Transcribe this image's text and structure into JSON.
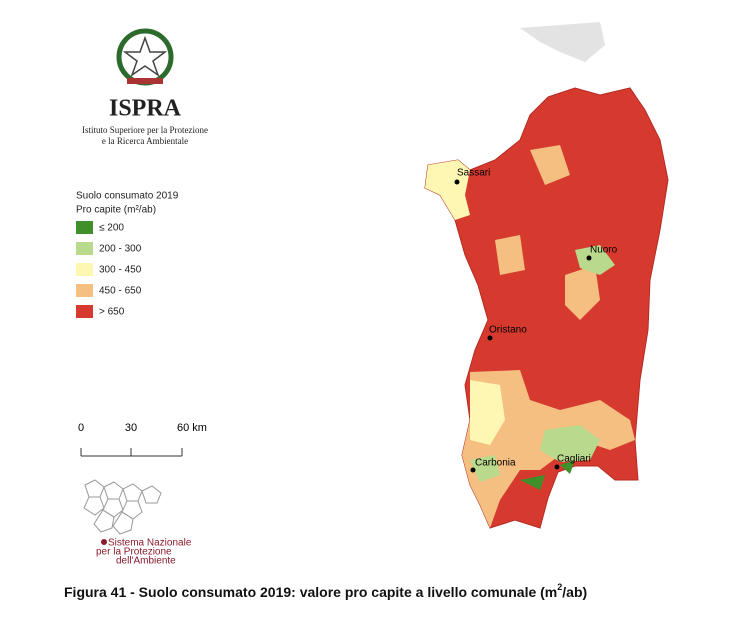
{
  "header": {
    "title": "ISPRA",
    "subtitle_line1": "Istituto Superiore per la Protezione",
    "subtitle_line2": "e la Ricerca Ambientale"
  },
  "legend": {
    "title": "Suolo consumato 2019",
    "subtitle": "Pro capite (m²/ab)",
    "items": [
      {
        "label": "≤ 200",
        "color": "#3f8f2a"
      },
      {
        "label": "200 - 300",
        "color": "#b9d98c"
      },
      {
        "label": "300 - 450",
        "color": "#fdf7b3"
      },
      {
        "label": "450 - 650",
        "color": "#f4bf80"
      },
      {
        "label": "> 650",
        "color": "#d63a2f"
      }
    ]
  },
  "scale_bar": {
    "labels": [
      "0",
      "30",
      "60 km"
    ]
  },
  "cities": [
    "Sassari",
    "Nuoro",
    "Oristano",
    "Carbonia",
    "Cagliari"
  ],
  "snpa": {
    "line1": "Sistema Nazionale",
    "line2": "per la Protezione",
    "line3": "dell'Ambiente"
  },
  "caption": {
    "text": "Figura 41 - Suolo consumato 2019: valore pro capite a livello comunale (m",
    "superscript": "2",
    "end": "/ab)"
  }
}
